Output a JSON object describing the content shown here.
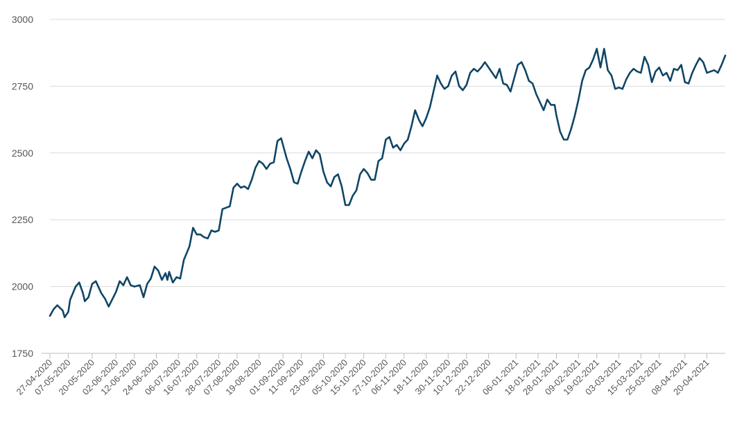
{
  "chart_data": {
    "type": "line",
    "title": "",
    "xlabel": "",
    "ylabel": "",
    "ylim": [
      1750,
      3000
    ],
    "yticks": [
      1750,
      2000,
      2250,
      2500,
      2750,
      3000
    ],
    "grid": true,
    "legend": "none",
    "colors": {
      "line": "#0f4566",
      "grid": "#d9d9d9",
      "text": "#555555"
    },
    "x_tick_labels": [
      "27-04-2020",
      "07-05-2020",
      "20-05-2020",
      "02-06-2020",
      "12-06-2020",
      "24-06-2020",
      "06-07-2020",
      "16-07-2020",
      "28-07-2020",
      "07-08-2020",
      "19-08-2020",
      "01-09-2020",
      "11-09-2020",
      "23-09-2020",
      "05-10-2020",
      "15-10-2020",
      "27-10-2020",
      "06-11-2020",
      "18-11-2020",
      "30-11-2020",
      "10-12-2020",
      "22-12-2020",
      "06-01-2021",
      "18-01-2021",
      "28-01-2021",
      "09-02-2021",
      "19-02-2021",
      "03-03-2021",
      "15-03-2021",
      "25-03-2021",
      "08-04-2021",
      "20-04-2021"
    ],
    "x_start": "27-04-2020",
    "x_end": "30-04-2021",
    "series": [
      {
        "values": [
          [
            "27-04-2020",
            1890
          ],
          [
            "29-04-2020",
            1915
          ],
          [
            "01-05-2020",
            1930
          ],
          [
            "04-05-2020",
            1910
          ],
          [
            "05-05-2020",
            1885
          ],
          [
            "07-05-2020",
            1905
          ],
          [
            "08-05-2020",
            1950
          ],
          [
            "11-05-2020",
            2000
          ],
          [
            "13-05-2020",
            2015
          ],
          [
            "15-05-2020",
            1975
          ],
          [
            "16-05-2020",
            1945
          ],
          [
            "18-05-2020",
            1960
          ],
          [
            "20-05-2020",
            2010
          ],
          [
            "22-05-2020",
            2020
          ],
          [
            "25-05-2020",
            1975
          ],
          [
            "27-05-2020",
            1955
          ],
          [
            "29-05-2020",
            1925
          ],
          [
            "02-06-2020",
            1980
          ],
          [
            "04-06-2020",
            2020
          ],
          [
            "06-06-2020",
            2005
          ],
          [
            "08-06-2020",
            2035
          ],
          [
            "10-06-2020",
            2005
          ],
          [
            "12-06-2020",
            2000
          ],
          [
            "15-06-2020",
            2005
          ],
          [
            "17-06-2020",
            1960
          ],
          [
            "19-06-2020",
            2010
          ],
          [
            "21-06-2020",
            2030
          ],
          [
            "23-06-2020",
            2075
          ],
          [
            "25-06-2020",
            2060
          ],
          [
            "27-06-2020",
            2025
          ],
          [
            "29-06-2020",
            2050
          ],
          [
            "30-06-2020",
            2025
          ],
          [
            "01-07-2020",
            2055
          ],
          [
            "03-07-2020",
            2015
          ],
          [
            "05-07-2020",
            2035
          ],
          [
            "07-07-2020",
            2030
          ],
          [
            "09-07-2020",
            2100
          ],
          [
            "12-07-2020",
            2150
          ],
          [
            "14-07-2020",
            2220
          ],
          [
            "16-07-2020",
            2195
          ],
          [
            "18-07-2020",
            2195
          ],
          [
            "20-07-2020",
            2185
          ],
          [
            "22-07-2020",
            2180
          ],
          [
            "24-07-2020",
            2210
          ],
          [
            "26-07-2020",
            2205
          ],
          [
            "28-07-2020",
            2210
          ],
          [
            "30-07-2020",
            2290
          ],
          [
            "01-08-2020",
            2295
          ],
          [
            "03-08-2020",
            2300
          ],
          [
            "05-08-2020",
            2370
          ],
          [
            "07-08-2020",
            2385
          ],
          [
            "09-08-2020",
            2370
          ],
          [
            "11-08-2020",
            2375
          ],
          [
            "13-08-2020",
            2365
          ],
          [
            "15-08-2020",
            2400
          ],
          [
            "17-08-2020",
            2445
          ],
          [
            "19-08-2020",
            2470
          ],
          [
            "21-08-2020",
            2460
          ],
          [
            "23-08-2020",
            2440
          ],
          [
            "25-08-2020",
            2460
          ],
          [
            "27-08-2020",
            2465
          ],
          [
            "29-08-2020",
            2545
          ],
          [
            "31-08-2020",
            2555
          ],
          [
            "01-09-2020",
            2530
          ],
          [
            "03-09-2020",
            2480
          ],
          [
            "05-09-2020",
            2440
          ],
          [
            "07-09-2020",
            2390
          ],
          [
            "09-09-2020",
            2385
          ],
          [
            "11-09-2020",
            2430
          ],
          [
            "13-09-2020",
            2470
          ],
          [
            "15-09-2020",
            2505
          ],
          [
            "17-09-2020",
            2480
          ],
          [
            "19-09-2020",
            2510
          ],
          [
            "21-09-2020",
            2495
          ],
          [
            "23-09-2020",
            2430
          ],
          [
            "25-09-2020",
            2390
          ],
          [
            "27-09-2020",
            2375
          ],
          [
            "29-09-2020",
            2410
          ],
          [
            "01-10-2020",
            2420
          ],
          [
            "03-10-2020",
            2375
          ],
          [
            "05-10-2020",
            2305
          ],
          [
            "07-10-2020",
            2305
          ],
          [
            "09-10-2020",
            2340
          ],
          [
            "11-10-2020",
            2360
          ],
          [
            "13-10-2020",
            2420
          ],
          [
            "15-10-2020",
            2440
          ],
          [
            "17-10-2020",
            2425
          ],
          [
            "19-10-2020",
            2400
          ],
          [
            "21-10-2020",
            2400
          ],
          [
            "23-10-2020",
            2470
          ],
          [
            "25-10-2020",
            2480
          ],
          [
            "27-10-2020",
            2550
          ],
          [
            "29-10-2020",
            2560
          ],
          [
            "31-10-2020",
            2520
          ],
          [
            "02-11-2020",
            2530
          ],
          [
            "04-11-2020",
            2510
          ],
          [
            "06-11-2020",
            2535
          ],
          [
            "08-11-2020",
            2550
          ],
          [
            "10-11-2020",
            2600
          ],
          [
            "12-11-2020",
            2660
          ],
          [
            "14-11-2020",
            2625
          ],
          [
            "16-11-2020",
            2600
          ],
          [
            "18-11-2020",
            2630
          ],
          [
            "20-11-2020",
            2670
          ],
          [
            "22-11-2020",
            2730
          ],
          [
            "24-11-2020",
            2790
          ],
          [
            "26-11-2020",
            2760
          ],
          [
            "28-11-2020",
            2740
          ],
          [
            "30-11-2020",
            2750
          ],
          [
            "02-12-2020",
            2790
          ],
          [
            "04-12-2020",
            2805
          ],
          [
            "06-12-2020",
            2750
          ],
          [
            "08-12-2020",
            2735
          ],
          [
            "10-12-2020",
            2755
          ],
          [
            "12-12-2020",
            2800
          ],
          [
            "14-12-2020",
            2815
          ],
          [
            "16-12-2020",
            2805
          ],
          [
            "18-12-2020",
            2820
          ],
          [
            "20-12-2020",
            2840
          ],
          [
            "22-12-2020",
            2820
          ],
          [
            "24-12-2020",
            2800
          ],
          [
            "26-12-2020",
            2780
          ],
          [
            "28-12-2020",
            2815
          ],
          [
            "30-12-2020",
            2760
          ],
          [
            "01-01-2021",
            2755
          ],
          [
            "03-01-2021",
            2730
          ],
          [
            "05-01-2021",
            2780
          ],
          [
            "07-01-2021",
            2830
          ],
          [
            "09-01-2021",
            2840
          ],
          [
            "11-01-2021",
            2810
          ],
          [
            "13-01-2021",
            2770
          ],
          [
            "15-01-2021",
            2760
          ],
          [
            "17-01-2021",
            2720
          ],
          [
            "19-01-2021",
            2690
          ],
          [
            "21-01-2021",
            2660
          ],
          [
            "23-01-2021",
            2700
          ],
          [
            "25-01-2021",
            2680
          ],
          [
            "27-01-2021",
            2680
          ],
          [
            "28-01-2021",
            2640
          ],
          [
            "30-01-2021",
            2580
          ],
          [
            "01-02-2021",
            2550
          ],
          [
            "03-02-2021",
            2550
          ],
          [
            "05-02-2021",
            2590
          ],
          [
            "07-02-2021",
            2640
          ],
          [
            "09-02-2021",
            2700
          ],
          [
            "11-02-2021",
            2770
          ],
          [
            "13-02-2021",
            2810
          ],
          [
            "15-02-2021",
            2820
          ],
          [
            "17-02-2021",
            2850
          ],
          [
            "19-02-2021",
            2890
          ],
          [
            "21-02-2021",
            2820
          ],
          [
            "23-02-2021",
            2890
          ],
          [
            "25-02-2021",
            2810
          ],
          [
            "27-02-2021",
            2790
          ],
          [
            "01-03-2021",
            2740
          ],
          [
            "03-03-2021",
            2745
          ],
          [
            "05-03-2021",
            2740
          ],
          [
            "07-03-2021",
            2775
          ],
          [
            "09-03-2021",
            2800
          ],
          [
            "11-03-2021",
            2815
          ],
          [
            "13-03-2021",
            2805
          ],
          [
            "15-03-2021",
            2800
          ],
          [
            "17-03-2021",
            2860
          ],
          [
            "19-03-2021",
            2830
          ],
          [
            "21-03-2021",
            2765
          ],
          [
            "23-03-2021",
            2805
          ],
          [
            "25-03-2021",
            2820
          ],
          [
            "27-03-2021",
            2790
          ],
          [
            "29-03-2021",
            2800
          ],
          [
            "31-03-2021",
            2770
          ],
          [
            "02-04-2021",
            2815
          ],
          [
            "04-04-2021",
            2810
          ],
          [
            "06-04-2021",
            2830
          ],
          [
            "08-04-2021",
            2765
          ],
          [
            "10-04-2021",
            2760
          ],
          [
            "12-04-2021",
            2800
          ],
          [
            "14-04-2021",
            2830
          ],
          [
            "16-04-2021",
            2855
          ],
          [
            "18-04-2021",
            2840
          ],
          [
            "20-04-2021",
            2800
          ],
          [
            "22-04-2021",
            2805
          ],
          [
            "24-04-2021",
            2810
          ],
          [
            "26-04-2021",
            2800
          ],
          [
            "28-04-2021",
            2830
          ],
          [
            "30-04-2021",
            2865
          ]
        ]
      }
    ]
  }
}
